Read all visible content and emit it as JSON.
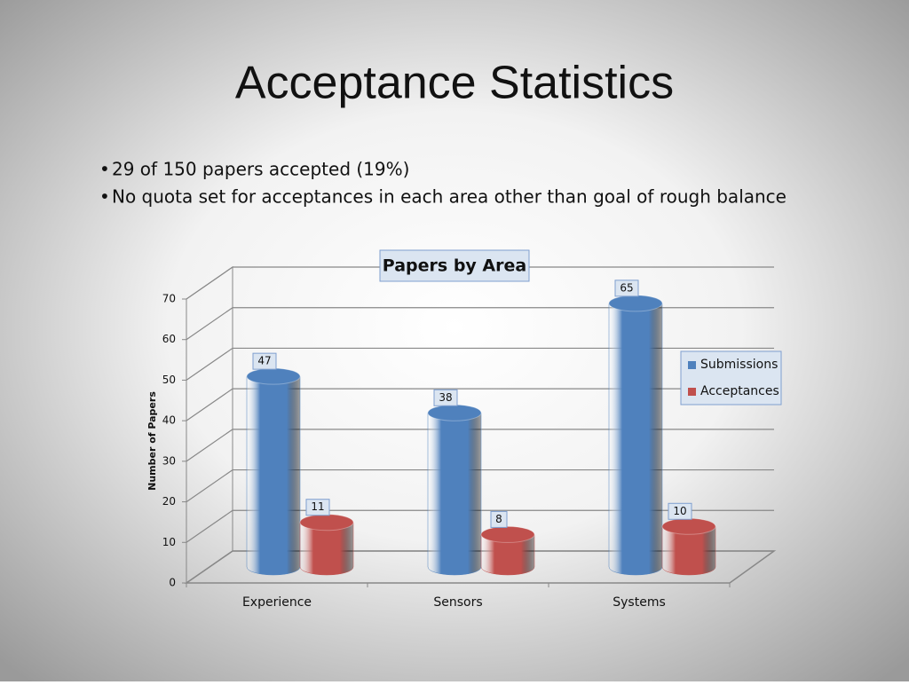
{
  "header": {
    "title": "Acceptance Statistics"
  },
  "bullets": [
    "29 of 150 papers accepted (19%)",
    "No quota set for acceptances in each area other than goal of rough balance"
  ],
  "chart_data": {
    "type": "bar",
    "title": "Papers by Area",
    "y_label": "Number of Papers",
    "categories": [
      "Experience",
      "Sensors",
      "Systems"
    ],
    "series": [
      {
        "name": "Submissions",
        "color": "#4f81bd",
        "values": [
          47,
          38,
          65
        ]
      },
      {
        "name": "Acceptances",
        "color": "#c0504d",
        "values": [
          11,
          8,
          10
        ]
      }
    ],
    "ylim": [
      0,
      70
    ],
    "yticks": [
      0,
      10,
      20,
      30,
      40,
      50,
      60,
      70
    ],
    "grid": true,
    "legend": "right"
  }
}
